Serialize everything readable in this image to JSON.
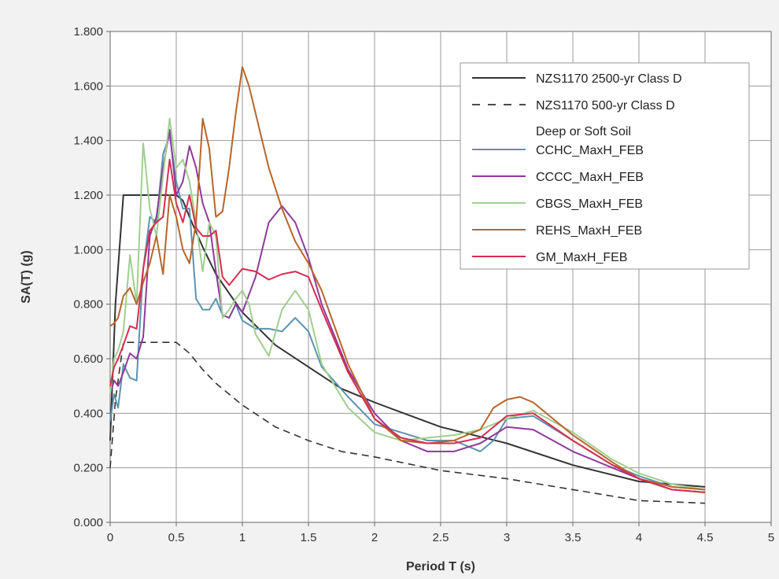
{
  "chart_data": {
    "type": "line",
    "title": "",
    "xlabel": "Period T (s)",
    "ylabel": "SA(T) (g)",
    "xlim": [
      0,
      5
    ],
    "ylim": [
      0,
      1.8
    ],
    "x_ticks": [
      "0",
      "0.5",
      "1",
      "1.5",
      "2",
      "2.5",
      "3",
      "3.5",
      "4",
      "4.5",
      "5"
    ],
    "y_ticks": [
      "0.000",
      "0.200",
      "0.400",
      "0.600",
      "0.800",
      "1.000",
      "1.200",
      "1.400",
      "1.600",
      "1.800"
    ],
    "grid": true,
    "legend_position": "top-right",
    "legend_extra_label": "Deep or Soft Soil",
    "series": [
      {
        "name": "NZS1170 2500-yr Class D",
        "color": "#333333",
        "dash": "solid",
        "x": [
          0,
          0.04,
          0.1,
          0.2,
          0.3,
          0.4,
          0.5,
          0.55,
          0.6,
          0.7,
          0.8,
          0.9,
          1.0,
          1.25,
          1.5,
          1.75,
          2.0,
          2.5,
          3.0,
          3.5,
          4.0,
          4.5
        ],
        "y": [
          0.3,
          0.8,
          1.2,
          1.2,
          1.2,
          1.2,
          1.2,
          1.18,
          1.12,
          1.01,
          0.91,
          0.84,
          0.77,
          0.65,
          0.57,
          0.49,
          0.44,
          0.35,
          0.29,
          0.21,
          0.15,
          0.13
        ]
      },
      {
        "name": "NZS1170 500-yr Class D",
        "color": "#333333",
        "dash": "dashed",
        "x": [
          0,
          0.04,
          0.1,
          0.2,
          0.3,
          0.4,
          0.5,
          0.6,
          0.7,
          0.8,
          0.9,
          1.0,
          1.25,
          1.5,
          1.75,
          2.0,
          2.5,
          3.0,
          3.5,
          4.0,
          4.5
        ],
        "y": [
          0.2,
          0.45,
          0.66,
          0.66,
          0.66,
          0.66,
          0.66,
          0.62,
          0.56,
          0.51,
          0.47,
          0.43,
          0.35,
          0.3,
          0.26,
          0.24,
          0.19,
          0.16,
          0.12,
          0.08,
          0.07
        ]
      },
      {
        "name": "CCHC_MaxH_FEB",
        "color": "#5b93b0",
        "dash": "solid",
        "x": [
          0,
          0.03,
          0.06,
          0.1,
          0.15,
          0.2,
          0.25,
          0.3,
          0.35,
          0.4,
          0.45,
          0.5,
          0.55,
          0.6,
          0.65,
          0.7,
          0.75,
          0.8,
          0.85,
          0.9,
          0.95,
          1.0,
          1.1,
          1.2,
          1.3,
          1.4,
          1.5,
          1.6,
          1.8,
          2.0,
          2.2,
          2.4,
          2.6,
          2.7,
          2.8,
          2.9,
          3.0,
          3.2,
          3.5,
          3.8,
          4.0,
          4.25,
          4.5
        ],
        "y": [
          0.37,
          0.47,
          0.42,
          0.58,
          0.53,
          0.52,
          0.93,
          1.12,
          1.1,
          1.35,
          1.42,
          1.25,
          1.15,
          1.15,
          0.82,
          0.78,
          0.78,
          0.82,
          0.76,
          0.75,
          0.8,
          0.74,
          0.71,
          0.71,
          0.7,
          0.75,
          0.7,
          0.57,
          0.46,
          0.36,
          0.33,
          0.3,
          0.3,
          0.28,
          0.26,
          0.3,
          0.38,
          0.39,
          0.3,
          0.21,
          0.17,
          0.13,
          0.12
        ]
      },
      {
        "name": "CCCC_MaxH_FEB",
        "color": "#8e3a9a",
        "dash": "solid",
        "x": [
          0,
          0.03,
          0.06,
          0.1,
          0.15,
          0.2,
          0.25,
          0.3,
          0.35,
          0.4,
          0.45,
          0.5,
          0.55,
          0.6,
          0.65,
          0.7,
          0.75,
          0.8,
          0.85,
          0.9,
          0.95,
          1.0,
          1.1,
          1.2,
          1.3,
          1.4,
          1.5,
          1.6,
          1.8,
          2.0,
          2.2,
          2.4,
          2.6,
          2.8,
          3.0,
          3.2,
          3.5,
          3.8,
          4.0,
          4.25,
          4.5
        ],
        "y": [
          0.47,
          0.52,
          0.5,
          0.55,
          0.62,
          0.6,
          0.68,
          1.05,
          1.12,
          1.3,
          1.44,
          1.2,
          1.25,
          1.38,
          1.3,
          1.17,
          1.1,
          0.92,
          0.76,
          0.75,
          0.8,
          0.77,
          0.9,
          1.1,
          1.16,
          1.1,
          0.97,
          0.8,
          0.56,
          0.4,
          0.3,
          0.26,
          0.26,
          0.29,
          0.35,
          0.34,
          0.26,
          0.2,
          0.16,
          0.12,
          0.11
        ]
      },
      {
        "name": "CBGS_MaxH_FEB",
        "color": "#9fcf8f",
        "dash": "solid",
        "x": [
          0,
          0.03,
          0.06,
          0.1,
          0.15,
          0.2,
          0.25,
          0.3,
          0.35,
          0.4,
          0.45,
          0.5,
          0.55,
          0.6,
          0.65,
          0.7,
          0.75,
          0.8,
          0.85,
          0.9,
          0.95,
          1.0,
          1.05,
          1.1,
          1.2,
          1.3,
          1.4,
          1.5,
          1.6,
          1.8,
          2.0,
          2.2,
          2.4,
          2.6,
          2.8,
          3.0,
          3.2,
          3.5,
          3.8,
          4.0,
          4.25,
          4.5
        ],
        "y": [
          0.47,
          0.6,
          0.63,
          0.7,
          0.98,
          0.8,
          1.39,
          1.15,
          1.05,
          1.27,
          1.48,
          1.3,
          1.33,
          1.25,
          1.1,
          0.92,
          1.1,
          1.05,
          0.75,
          0.78,
          0.82,
          0.85,
          0.8,
          0.69,
          0.61,
          0.78,
          0.85,
          0.78,
          0.58,
          0.42,
          0.33,
          0.3,
          0.31,
          0.32,
          0.34,
          0.38,
          0.41,
          0.33,
          0.23,
          0.18,
          0.14,
          0.12
        ]
      },
      {
        "name": "REHS_MaxH_FEB",
        "color": "#b8652a",
        "dash": "solid",
        "x": [
          0,
          0.03,
          0.06,
          0.1,
          0.15,
          0.2,
          0.25,
          0.3,
          0.35,
          0.4,
          0.45,
          0.5,
          0.55,
          0.6,
          0.65,
          0.7,
          0.75,
          0.8,
          0.85,
          0.9,
          0.95,
          1.0,
          1.05,
          1.1,
          1.2,
          1.3,
          1.4,
          1.5,
          1.6,
          1.8,
          2.0,
          2.2,
          2.4,
          2.6,
          2.8,
          2.9,
          3.0,
          3.1,
          3.2,
          3.5,
          3.8,
          4.0,
          4.25,
          4.5
        ],
        "y": [
          0.72,
          0.73,
          0.75,
          0.83,
          0.86,
          0.8,
          0.88,
          0.95,
          1.05,
          0.91,
          1.2,
          1.12,
          1.0,
          0.95,
          1.1,
          1.48,
          1.37,
          1.12,
          1.14,
          1.3,
          1.5,
          1.67,
          1.6,
          1.5,
          1.3,
          1.15,
          1.03,
          0.95,
          0.85,
          0.58,
          0.38,
          0.3,
          0.29,
          0.3,
          0.34,
          0.42,
          0.45,
          0.46,
          0.44,
          0.32,
          0.22,
          0.16,
          0.13,
          0.12
        ]
      },
      {
        "name": "GM_MaxH_FEB",
        "color": "#d42e50",
        "dash": "solid",
        "x": [
          0,
          0.03,
          0.06,
          0.1,
          0.15,
          0.2,
          0.25,
          0.3,
          0.35,
          0.4,
          0.45,
          0.5,
          0.55,
          0.6,
          0.65,
          0.7,
          0.75,
          0.8,
          0.85,
          0.9,
          1.0,
          1.1,
          1.2,
          1.3,
          1.4,
          1.5,
          1.6,
          1.8,
          2.0,
          2.2,
          2.4,
          2.6,
          2.8,
          3.0,
          3.2,
          3.5,
          3.8,
          4.0,
          4.25,
          4.5
        ],
        "y": [
          0.5,
          0.57,
          0.6,
          0.65,
          0.72,
          0.71,
          0.93,
          1.07,
          1.1,
          1.12,
          1.33,
          1.17,
          1.1,
          1.2,
          1.08,
          1.05,
          1.05,
          1.07,
          0.9,
          0.87,
          0.93,
          0.92,
          0.89,
          0.91,
          0.92,
          0.9,
          0.78,
          0.55,
          0.38,
          0.31,
          0.29,
          0.29,
          0.31,
          0.39,
          0.4,
          0.3,
          0.21,
          0.16,
          0.12,
          0.11
        ]
      }
    ]
  }
}
